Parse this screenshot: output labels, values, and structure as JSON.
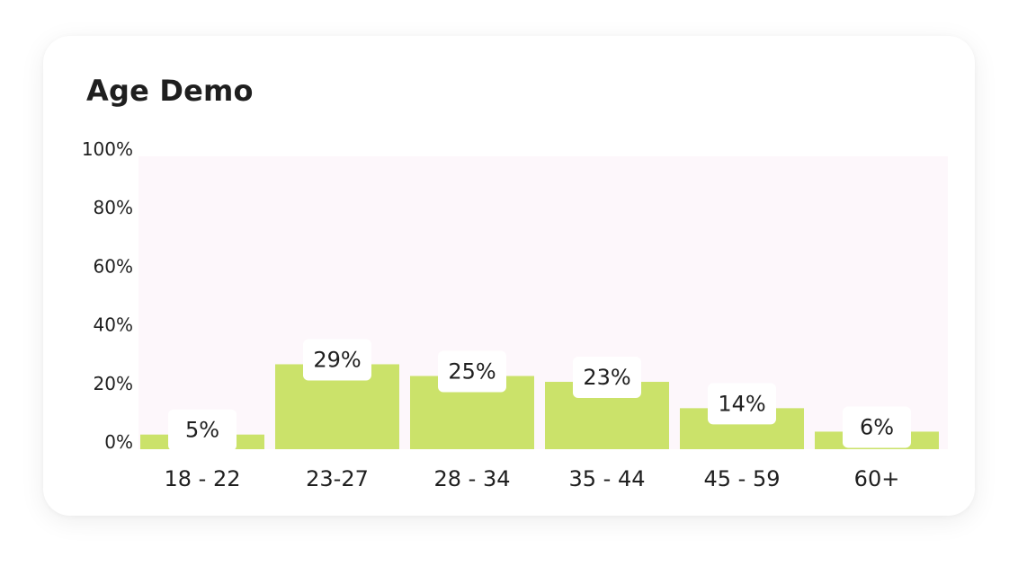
{
  "chart_data": {
    "type": "bar",
    "title": "Age Demo",
    "categories": [
      "18 - 22",
      "23-27",
      "28 - 34",
      "35 - 44",
      "45 - 59",
      "60+"
    ],
    "values": [
      5,
      29,
      25,
      23,
      14,
      6
    ],
    "value_labels": [
      "5%",
      "29%",
      "25%",
      "23%",
      "14%",
      "6%"
    ],
    "ylim": [
      0,
      100
    ],
    "yticks": [
      0,
      20,
      40,
      60,
      80,
      100
    ],
    "ytick_labels": [
      "0%",
      "20%",
      "40%",
      "60%",
      "80%",
      "100%"
    ],
    "xlabel": "",
    "ylabel": "",
    "grid": false,
    "legend": "none",
    "colors": {
      "bar": "#cbe26a",
      "plot_background": "#fdf7fb",
      "label_box": "#ffffff"
    }
  }
}
